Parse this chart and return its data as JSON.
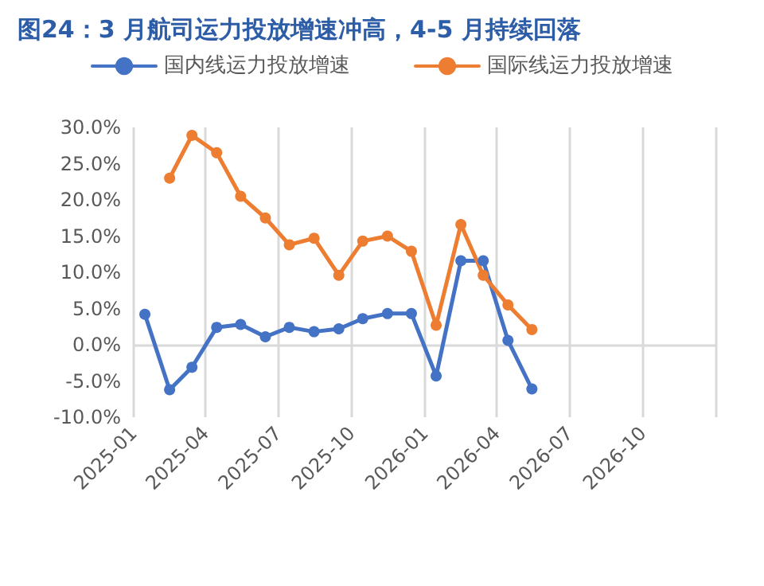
{
  "chart_data": {
    "type": "line",
    "title": "图24：3 月航司运力投放增速冲高，4-5 月持续回落",
    "x": [
      "2025-01-15",
      "2025-02-15",
      "2025-03-15",
      "2025-04-15",
      "2025-05-15",
      "2025-06-15",
      "2025-07-15",
      "2025-08-15",
      "2025-09-15",
      "2025-10-15",
      "2025-11-15",
      "2025-12-15",
      "2026-01-15",
      "2026-02-15",
      "2026-03-15",
      "2026-04-15",
      "2026-05-15"
    ],
    "series": [
      {
        "name": "国内线运力投放增速",
        "color": "#4472c4",
        "values": [
          4.2,
          -6.2,
          -3.1,
          2.4,
          2.8,
          1.1,
          2.4,
          1.8,
          2.2,
          3.6,
          4.3,
          4.3,
          -4.3,
          11.6,
          11.6,
          0.6,
          -6.1
        ]
      },
      {
        "name": "国际线运力投放增速",
        "color": "#ed7d31",
        "values": [
          null,
          23.0,
          28.9,
          26.5,
          20.5,
          17.5,
          13.8,
          14.7,
          9.6,
          14.3,
          15.0,
          12.9,
          2.7,
          16.6,
          9.6,
          5.5,
          2.1
        ]
      }
    ],
    "xlim": [
      "2025-01",
      "2027-01"
    ],
    "xticks": [
      "2025-01",
      "2025-04",
      "2025-07",
      "2025-10",
      "2026-01",
      "2026-04",
      "2026-07",
      "2026-10",
      {
        "value": "2027-01",
        "label": null
      }
    ],
    "ylim": [
      -10,
      30
    ],
    "yticks": [
      {
        "value": -10,
        "label": "-10.0%"
      },
      {
        "value": -5,
        "label": "-5.0%"
      },
      {
        "value": 0,
        "label": "0.0%"
      },
      {
        "value": 5,
        "label": "5.0%"
      },
      {
        "value": 10,
        "label": "10.0%"
      },
      {
        "value": 15,
        "label": "15.0%"
      },
      {
        "value": 20,
        "label": "20.0%"
      },
      {
        "value": 25,
        "label": "25.0%"
      },
      {
        "value": 30,
        "label": "30.0%"
      }
    ],
    "ref_lines": [
      {
        "axis": "y",
        "value": 0,
        "color": "#d9d9d9"
      }
    ],
    "grid": "x",
    "legend": "top",
    "marker": "circle",
    "line_style": "solid"
  }
}
